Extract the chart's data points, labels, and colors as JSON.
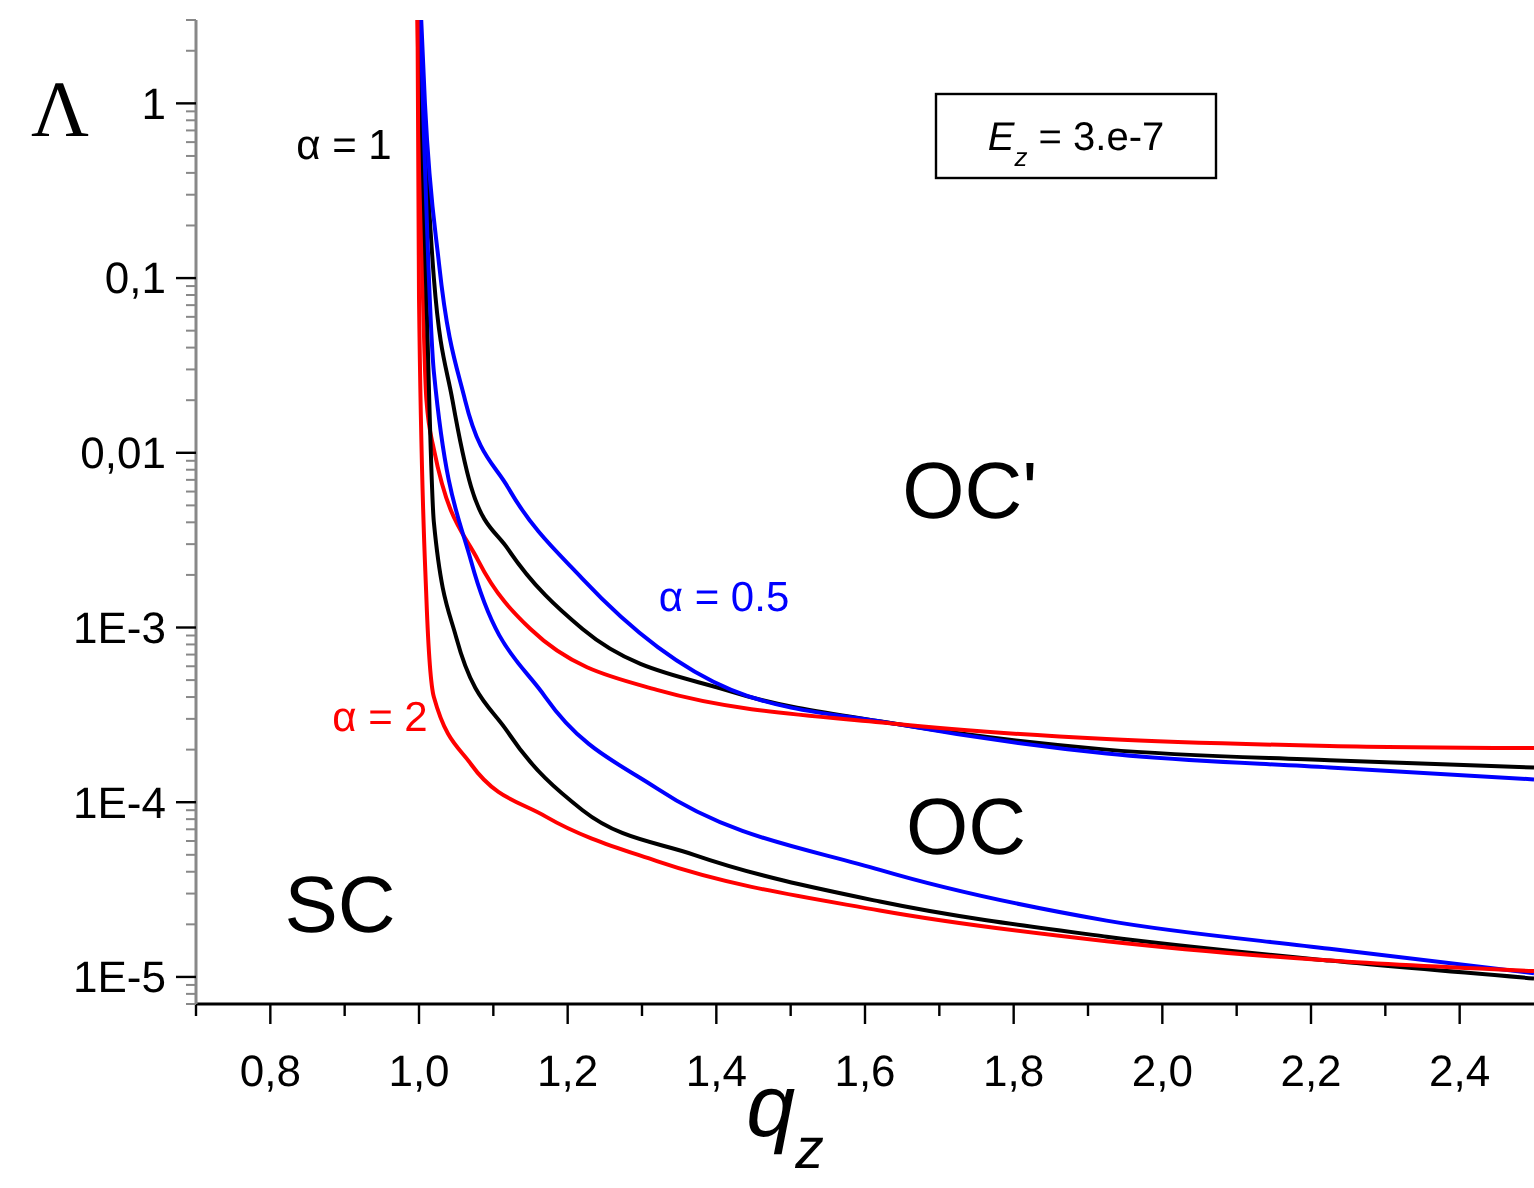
{
  "chart_data": {
    "type": "line",
    "xlabel": "q$_{z}$",
    "ylabel": "Λ",
    "log": "y",
    "grid": false,
    "line_style": "solid",
    "xlim": [
      0.7,
      2.5
    ],
    "ylim": [
      7e-06,
      3
    ],
    "xticks": [
      {
        "value": 0.7,
        "label": null
      },
      {
        "value": 0.8,
        "label": "0,8"
      },
      {
        "value": 0.9,
        "label": null
      },
      {
        "value": 1.0,
        "label": "1,0"
      },
      {
        "value": 1.1,
        "label": null
      },
      {
        "value": 1.2,
        "label": "1,2"
      },
      {
        "value": 1.3,
        "label": null
      },
      {
        "value": 1.4,
        "label": "1,4"
      },
      {
        "value": 1.5,
        "label": null
      },
      {
        "value": 1.6,
        "label": "1,6"
      },
      {
        "value": 1.7,
        "label": null
      },
      {
        "value": 1.8,
        "label": "1,8"
      },
      {
        "value": 1.9,
        "label": null
      },
      {
        "value": 2.0,
        "label": "2,0"
      },
      {
        "value": 2.1,
        "label": null
      },
      {
        "value": 2.2,
        "label": "2,2"
      },
      {
        "value": 2.3,
        "label": null
      },
      {
        "value": 2.4,
        "label": "2,4"
      }
    ],
    "yticks": [
      {
        "value": 1e-05,
        "label": "1E-5"
      },
      {
        "value": 0.0001,
        "label": "1E-4"
      },
      {
        "value": 0.001,
        "label": "1E-3"
      },
      {
        "value": 0.01,
        "label": "0,01"
      },
      {
        "value": 0.1,
        "label": "0,1"
      },
      {
        "value": 1,
        "label": "1"
      }
    ],
    "series": [
      {
        "color": "#000000",
        "x": [
          1.0,
          1.02,
          1.045,
          1.07,
          1.12,
          1.22,
          1.42,
          1.643,
          1.925,
          2.225,
          2.5
        ],
        "values": [
          3,
          0.1,
          0.02,
          0.0064,
          0.0028,
          0.00098,
          0.00043,
          0.00028,
          0.0002,
          0.000174,
          0.000158
        ]
      },
      {
        "color": "#0000ff",
        "x": [
          1.003,
          1.008,
          1.027,
          1.062,
          1.12,
          1.22,
          1.42,
          1.643,
          1.925,
          2.225,
          2.5
        ],
        "values": [
          3,
          1,
          0.12,
          0.02,
          0.0063,
          0.0019,
          0.00044,
          0.00028,
          0.00019,
          0.000158,
          0.000135
        ]
      },
      {
        "color": "#ff0000",
        "x": [
          0.998,
          1.01,
          1.02,
          1.08,
          1.15,
          1.32,
          1.643,
          1.925,
          2.225,
          2.5
        ],
        "values": [
          3,
          0.02,
          0.0105,
          0.0024,
          0.00098,
          0.00044,
          0.00028,
          0.00023,
          0.00021,
          0.000204
        ]
      },
      {
        "color": "#000000",
        "x": [
          1.0,
          1.01,
          1.02,
          1.05,
          1.12,
          1.22,
          1.37,
          1.62,
          1.925,
          2.225,
          2.5
        ],
        "values": [
          3,
          0.077,
          0.004,
          0.00088,
          0.00025,
          9e-05,
          5e-05,
          2.7e-05,
          1.7e-05,
          1.24e-05,
          9.8e-06
        ]
      },
      {
        "color": "#0000ff",
        "x": [
          1.002,
          1.02,
          1.07,
          1.17,
          1.32,
          1.62,
          1.925,
          2.225,
          2.5
        ],
        "values": [
          3,
          0.029,
          0.0024,
          0.0004,
          0.00012,
          4.1e-05,
          2.1e-05,
          1.45e-05,
          1.05e-05
        ]
      },
      {
        "color": "#ff0000",
        "x": [
          0.998,
          1.0,
          1.01,
          1.02,
          1.07,
          1.17,
          1.32,
          1.62,
          1.925,
          2.225,
          2.5
        ],
        "values": [
          3,
          0.077,
          0.00145,
          0.0004,
          0.000165,
          8.3e-05,
          4.6e-05,
          2.4e-05,
          1.6e-05,
          1.24e-05,
          1.08e-05
        ]
      }
    ],
    "annotations": [
      "α = 1",
      "α = 0.5",
      "α = 2",
      "OC'",
      "OC",
      "SC",
      "E$_{z}$ = 3.e-7"
    ]
  }
}
